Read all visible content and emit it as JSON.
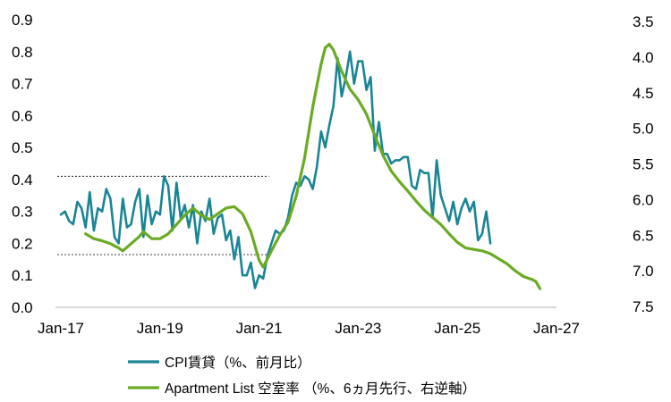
{
  "chart_data": {
    "type": "line",
    "title": "",
    "xlabel": "",
    "x_ticks": [
      "Jan-17",
      "Jan-19",
      "Jan-21",
      "Jan-23",
      "Jan-25",
      "Jan-27"
    ],
    "y_left": {
      "ticks": [
        "0.0",
        "0.1",
        "0.2",
        "0.3",
        "0.4",
        "0.5",
        "0.6",
        "0.7",
        "0.8",
        "0.9"
      ],
      "range": [
        0,
        0.9
      ]
    },
    "y_right": {
      "ticks": [
        "3.5",
        "4.0",
        "4.5",
        "5.0",
        "5.5",
        "6.0",
        "6.5",
        "7.0",
        "7.5"
      ],
      "range": [
        3.5,
        7.5
      ],
      "inverted": true
    },
    "reference_lines": [
      {
        "axis": "left",
        "value": 0.41,
        "from": "2017-01",
        "to": "2021-01",
        "style": "dotted"
      },
      {
        "axis": "left",
        "value": 0.165,
        "from": "2017-01",
        "to": "2021-01",
        "style": "dotted"
      }
    ],
    "legend_position": "bottom",
    "series": [
      {
        "name": "CPI賃貸（%、前月比）",
        "axis": "left",
        "color": "#1a8595",
        "points": [
          [
            "2017-01",
            0.29
          ],
          [
            "2017-02",
            0.3
          ],
          [
            "2017-03",
            0.27
          ],
          [
            "2017-04",
            0.26
          ],
          [
            "2017-05",
            0.33
          ],
          [
            "2017-06",
            0.31
          ],
          [
            "2017-07",
            0.25
          ],
          [
            "2017-08",
            0.36
          ],
          [
            "2017-09",
            0.24
          ],
          [
            "2017-10",
            0.31
          ],
          [
            "2017-11",
            0.3
          ],
          [
            "2017-12",
            0.37
          ],
          [
            "2018-01",
            0.34
          ],
          [
            "2018-02",
            0.22
          ],
          [
            "2018-03",
            0.2
          ],
          [
            "2018-04",
            0.34
          ],
          [
            "2018-05",
            0.25
          ],
          [
            "2018-06",
            0.26
          ],
          [
            "2018-07",
            0.33
          ],
          [
            "2018-08",
            0.37
          ],
          [
            "2018-09",
            0.22
          ],
          [
            "2018-10",
            0.35
          ],
          [
            "2018-11",
            0.26
          ],
          [
            "2018-12",
            0.3
          ],
          [
            "2019-01",
            0.29
          ],
          [
            "2019-02",
            0.41
          ],
          [
            "2019-03",
            0.38
          ],
          [
            "2019-04",
            0.24
          ],
          [
            "2019-05",
            0.39
          ],
          [
            "2019-06",
            0.28
          ],
          [
            "2019-07",
            0.32
          ],
          [
            "2019-08",
            0.25
          ],
          [
            "2019-09",
            0.32
          ],
          [
            "2019-10",
            0.2
          ],
          [
            "2019-11",
            0.3
          ],
          [
            "2019-12",
            0.27
          ],
          [
            "2020-01",
            0.34
          ],
          [
            "2020-02",
            0.23
          ],
          [
            "2020-03",
            0.28
          ],
          [
            "2020-04",
            0.29
          ],
          [
            "2020-05",
            0.21
          ],
          [
            "2020-06",
            0.24
          ],
          [
            "2020-07",
            0.15
          ],
          [
            "2020-08",
            0.22
          ],
          [
            "2020-09",
            0.1
          ],
          [
            "2020-10",
            0.1
          ],
          [
            "2020-11",
            0.14
          ],
          [
            "2020-12",
            0.06
          ],
          [
            "2021-01",
            0.1
          ],
          [
            "2021-02",
            0.09
          ],
          [
            "2021-03",
            0.16
          ],
          [
            "2021-04",
            0.2
          ],
          [
            "2021-05",
            0.24
          ],
          [
            "2021-06",
            0.23
          ],
          [
            "2021-07",
            0.24
          ],
          [
            "2021-08",
            0.28
          ],
          [
            "2021-09",
            0.35
          ],
          [
            "2021-10",
            0.39
          ],
          [
            "2021-11",
            0.38
          ],
          [
            "2021-12",
            0.41
          ],
          [
            "2022-01",
            0.4
          ],
          [
            "2022-02",
            0.37
          ],
          [
            "2022-03",
            0.44
          ],
          [
            "2022-04",
            0.55
          ],
          [
            "2022-05",
            0.5
          ],
          [
            "2022-06",
            0.57
          ],
          [
            "2022-07",
            0.63
          ],
          [
            "2022-08",
            0.78
          ],
          [
            "2022-09",
            0.66
          ],
          [
            "2022-10",
            0.72
          ],
          [
            "2022-11",
            0.8
          ],
          [
            "2022-12",
            0.7
          ],
          [
            "2023-01",
            0.77
          ],
          [
            "2023-02",
            0.77
          ],
          [
            "2023-03",
            0.68
          ],
          [
            "2023-04",
            0.72
          ],
          [
            "2023-05",
            0.49
          ],
          [
            "2023-06",
            0.58
          ],
          [
            "2023-07",
            0.48
          ],
          [
            "2023-08",
            0.48
          ],
          [
            "2023-09",
            0.45
          ],
          [
            "2023-10",
            0.46
          ],
          [
            "2023-11",
            0.46
          ],
          [
            "2023-12",
            0.47
          ],
          [
            "2024-01",
            0.47
          ],
          [
            "2024-02",
            0.38
          ],
          [
            "2024-03",
            0.37
          ],
          [
            "2024-04",
            0.43
          ],
          [
            "2024-05",
            0.42
          ],
          [
            "2024-06",
            0.42
          ],
          [
            "2024-07",
            0.28
          ],
          [
            "2024-08",
            0.46
          ],
          [
            "2024-09",
            0.35
          ],
          [
            "2024-10",
            0.31
          ],
          [
            "2024-11",
            0.27
          ],
          [
            "2024-12",
            0.33
          ],
          [
            "2025-01",
            0.26
          ],
          [
            "2025-02",
            0.31
          ],
          [
            "2025-03",
            0.34
          ],
          [
            "2025-04",
            0.3
          ],
          [
            "2025-05",
            0.33
          ],
          [
            "2025-06",
            0.21
          ],
          [
            "2025-07",
            0.23
          ],
          [
            "2025-08",
            0.3
          ],
          [
            "2025-09",
            0.2
          ]
        ]
      },
      {
        "name": "Apartment List 空室率 （%、6ヵ月先行、右逆軸）",
        "axis": "right",
        "color": "#6aab24",
        "points": [
          [
            "2017-07",
            6.48
          ],
          [
            "2017-09",
            6.55
          ],
          [
            "2017-11",
            6.58
          ],
          [
            "2018-01",
            6.62
          ],
          [
            "2018-03",
            6.68
          ],
          [
            "2018-04",
            6.72
          ],
          [
            "2018-06",
            6.62
          ],
          [
            "2018-08",
            6.52
          ],
          [
            "2018-09",
            6.45
          ],
          [
            "2018-11",
            6.55
          ],
          [
            "2019-01",
            6.55
          ],
          [
            "2019-03",
            6.48
          ],
          [
            "2019-05",
            6.35
          ],
          [
            "2019-07",
            6.22
          ],
          [
            "2019-09",
            6.12
          ],
          [
            "2019-11",
            6.22
          ],
          [
            "2020-01",
            6.28
          ],
          [
            "2020-03",
            6.2
          ],
          [
            "2020-05",
            6.12
          ],
          [
            "2020-07",
            6.1
          ],
          [
            "2020-09",
            6.2
          ],
          [
            "2020-11",
            6.45
          ],
          [
            "2021-01",
            6.85
          ],
          [
            "2021-02",
            6.95
          ],
          [
            "2021-04",
            6.72
          ],
          [
            "2021-06",
            6.5
          ],
          [
            "2021-08",
            6.32
          ],
          [
            "2021-10",
            5.95
          ],
          [
            "2021-12",
            5.42
          ],
          [
            "2022-02",
            4.7
          ],
          [
            "2022-04",
            4.1
          ],
          [
            "2022-05",
            3.87
          ],
          [
            "2022-06",
            3.82
          ],
          [
            "2022-07",
            3.9
          ],
          [
            "2022-09",
            4.2
          ],
          [
            "2022-11",
            4.45
          ],
          [
            "2023-01",
            4.6
          ],
          [
            "2023-03",
            4.8
          ],
          [
            "2023-05",
            5.1
          ],
          [
            "2023-07",
            5.38
          ],
          [
            "2023-09",
            5.6
          ],
          [
            "2023-11",
            5.75
          ],
          [
            "2024-01",
            5.88
          ],
          [
            "2024-03",
            6.02
          ],
          [
            "2024-05",
            6.15
          ],
          [
            "2024-07",
            6.25
          ],
          [
            "2024-09",
            6.35
          ],
          [
            "2024-11",
            6.48
          ],
          [
            "2025-01",
            6.6
          ],
          [
            "2025-03",
            6.68
          ],
          [
            "2025-05",
            6.7
          ],
          [
            "2025-07",
            6.72
          ],
          [
            "2025-09",
            6.76
          ],
          [
            "2025-11",
            6.83
          ],
          [
            "2026-01",
            6.9
          ],
          [
            "2026-03",
            7.0
          ],
          [
            "2026-05",
            7.08
          ],
          [
            "2026-07",
            7.12
          ],
          [
            "2026-08",
            7.15
          ],
          [
            "2026-09",
            7.25
          ]
        ]
      }
    ]
  }
}
